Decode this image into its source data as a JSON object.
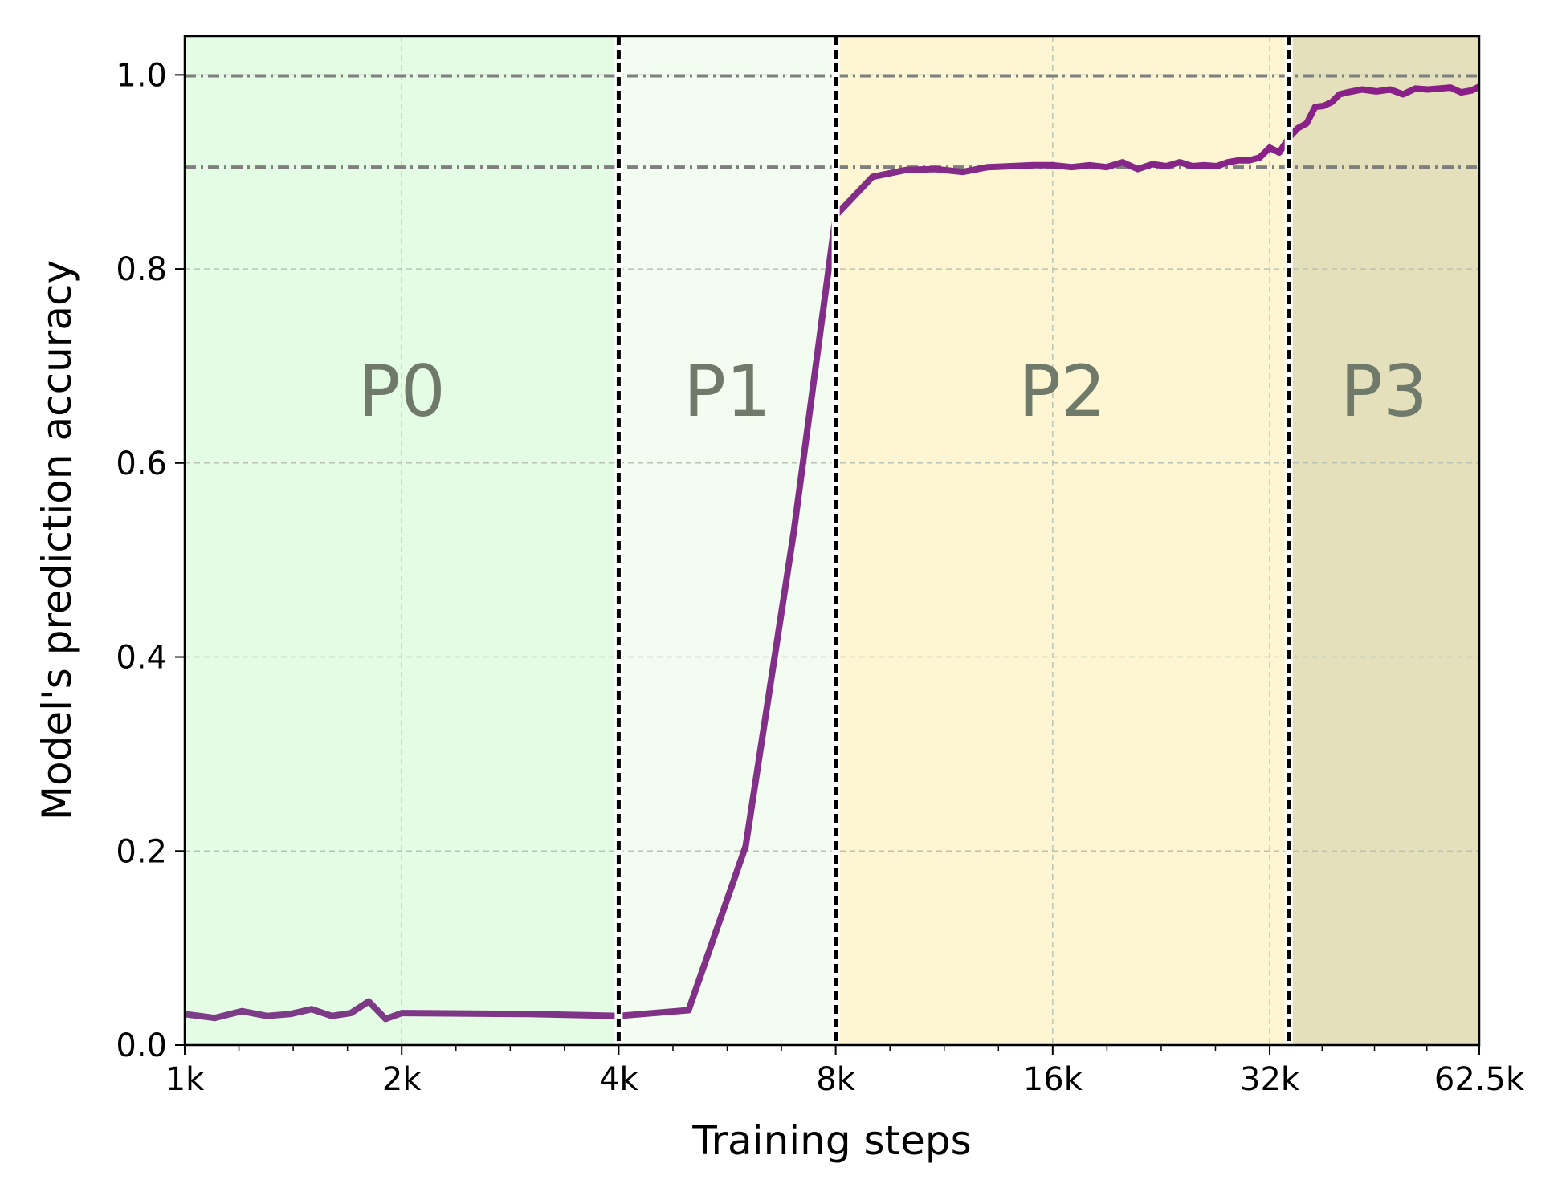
{
  "chart_data": {
    "type": "line",
    "xscale": "log2",
    "xlim": [
      1000,
      62500
    ],
    "ylim": [
      0.0,
      1.04
    ],
    "xlabel": "Training steps",
    "ylabel": "Model's prediction accuracy",
    "xticks": [
      {
        "value": 1000,
        "label": "1k"
      },
      {
        "value": 2000,
        "label": "2k"
      },
      {
        "value": 4000,
        "label": "4k"
      },
      {
        "value": 8000,
        "label": "8k"
      },
      {
        "value": 16000,
        "label": "16k"
      },
      {
        "value": 32000,
        "label": "32k"
      },
      {
        "value": 62500,
        "label": "62.5k"
      }
    ],
    "yticks": [
      {
        "value": 0.0,
        "label": "0.0"
      },
      {
        "value": 0.2,
        "label": "0.2"
      },
      {
        "value": 0.4,
        "label": "0.4"
      },
      {
        "value": 0.6,
        "label": "0.6"
      },
      {
        "value": 0.8,
        "label": "0.8"
      },
      {
        "value": 1.0,
        "label": "1.0"
      }
    ],
    "grid": true,
    "phases": [
      {
        "label": "P0",
        "x_start": 1000,
        "x_end": 4000,
        "color": "#e4fbe4"
      },
      {
        "label": "P1",
        "x_start": 4000,
        "x_end": 8000,
        "color": "#f3fcf0"
      },
      {
        "label": "P2",
        "x_start": 8000,
        "x_end": 34000,
        "color": "#fef6d2"
      },
      {
        "label": "P3",
        "x_start": 34000,
        "x_end": 62500,
        "color": "#e3e0bb"
      }
    ],
    "phase_boundaries": [
      4000,
      8000,
      34000
    ],
    "reference_lines": [
      {
        "y": 0.999,
        "color": "#7f7f7f"
      },
      {
        "y": 0.905,
        "color": "#7f7f7f"
      }
    ],
    "series": [
      {
        "color_start": "#7b3e87",
        "color_end": "#8a1d88",
        "points": [
          [
            1000,
            0.032
          ],
          [
            1100,
            0.028
          ],
          [
            1200,
            0.035
          ],
          [
            1300,
            0.03
          ],
          [
            1400,
            0.032
          ],
          [
            1500,
            0.037
          ],
          [
            1600,
            0.03
          ],
          [
            1700,
            0.033
          ],
          [
            1800,
            0.045
          ],
          [
            1900,
            0.027
          ],
          [
            2000,
            0.033
          ],
          [
            3000,
            0.032
          ],
          [
            4000,
            0.03
          ],
          [
            5000,
            0.036
          ],
          [
            6000,
            0.205
          ],
          [
            7000,
            0.53
          ],
          [
            8000,
            0.855
          ],
          [
            9000,
            0.895
          ],
          [
            10000,
            0.902
          ],
          [
            11000,
            0.903
          ],
          [
            12000,
            0.9
          ],
          [
            13000,
            0.905
          ],
          [
            14000,
            0.906
          ],
          [
            15000,
            0.907
          ],
          [
            16000,
            0.907
          ],
          [
            17000,
            0.905
          ],
          [
            18000,
            0.907
          ],
          [
            19000,
            0.905
          ],
          [
            20000,
            0.91
          ],
          [
            21000,
            0.903
          ],
          [
            22000,
            0.908
          ],
          [
            23000,
            0.906
          ],
          [
            24000,
            0.91
          ],
          [
            25000,
            0.906
          ],
          [
            26000,
            0.907
          ],
          [
            27000,
            0.906
          ],
          [
            28000,
            0.91
          ],
          [
            29000,
            0.912
          ],
          [
            30000,
            0.912
          ],
          [
            31000,
            0.915
          ],
          [
            32000,
            0.925
          ],
          [
            33000,
            0.92
          ],
          [
            34000,
            0.935
          ],
          [
            35000,
            0.945
          ],
          [
            36000,
            0.95
          ],
          [
            37000,
            0.967
          ],
          [
            38000,
            0.968
          ],
          [
            39000,
            0.972
          ],
          [
            40000,
            0.98
          ],
          [
            41000,
            0.982
          ],
          [
            43000,
            0.985
          ],
          [
            45000,
            0.983
          ],
          [
            47000,
            0.985
          ],
          [
            49000,
            0.98
          ],
          [
            51000,
            0.986
          ],
          [
            53000,
            0.985
          ],
          [
            55000,
            0.986
          ],
          [
            57000,
            0.987
          ],
          [
            59000,
            0.982
          ],
          [
            61000,
            0.984
          ],
          [
            62500,
            0.988
          ]
        ]
      }
    ]
  }
}
